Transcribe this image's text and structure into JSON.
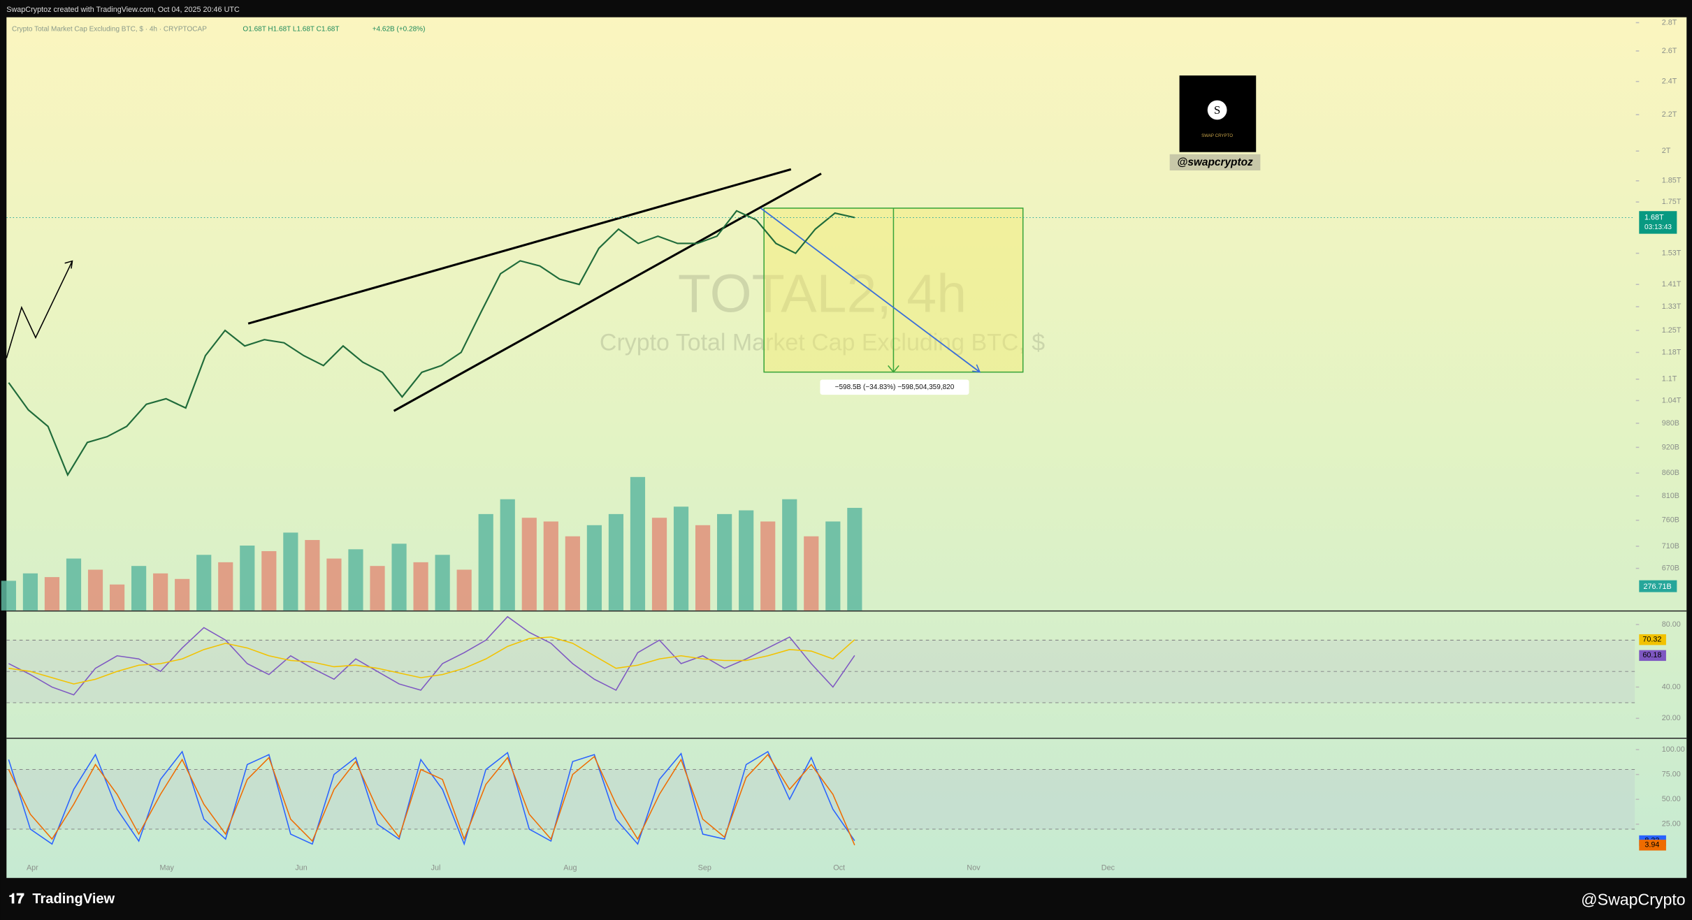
{
  "header": {
    "credit": "SwapCryptoz created with TradingView.com, Oct 04, 2025 20:46 UTC"
  },
  "legend": {
    "symbol": "Crypto Total Market Cap Excluding BTC, $ · 4h · CRYPTOCAP",
    "ohlc": "O1.68T H1.68T L1.68T C1.68T",
    "change": "+4.62B (+0.28%)"
  },
  "watermark": {
    "ticker": "TOTAL2, 4h",
    "name": "Crypto Total Market Cap Excluding BTC, $"
  },
  "measure": {
    "label": "−598.5B (−34.83%) −598,504,359,820"
  },
  "logo": {
    "letter": "S",
    "brand": "SWAP CRYPTO",
    "handle": "@swapcryptoz"
  },
  "footer": {
    "left": "TradingView",
    "right": "@SwapCrypto"
  },
  "chart_data": [
    {
      "type": "line",
      "name": "price",
      "log_scale": true,
      "color": "#1f6b3a",
      "values": [
        1090,
        1015,
        972,
        856,
        932,
        946,
        972,
        1030,
        1045,
        1020,
        1170,
        1250,
        1200,
        1220,
        1210,
        1170,
        1140,
        1200,
        1150,
        1120,
        1050,
        1120,
        1140,
        1180,
        1310,
        1450,
        1500,
        1480,
        1430,
        1410,
        1550,
        1630,
        1570,
        1600,
        1570,
        1570,
        1600,
        1710,
        1670,
        1570,
        1530,
        1630,
        1700,
        1680
      ],
      "ylim": [
        600,
        2840
      ],
      "yticks": [
        {
          "value": 2800,
          "label": "2.8T"
        },
        {
          "value": 2600,
          "label": "2.6T"
        },
        {
          "value": 2400,
          "label": "2.4T"
        },
        {
          "value": 2200,
          "label": "2.2T"
        },
        {
          "value": 2000,
          "label": "2T"
        },
        {
          "value": 1850,
          "label": "1.85T"
        },
        {
          "value": 1750,
          "label": "1.75T"
        },
        {
          "value": 1530,
          "label": "1.53T"
        },
        {
          "value": 1410,
          "label": "1.41T"
        },
        {
          "value": 1330,
          "label": "1.33T"
        },
        {
          "value": 1250,
          "label": "1.25T"
        },
        {
          "value": 1180,
          "label": "1.18T"
        },
        {
          "value": 1100,
          "label": "1.1T"
        },
        {
          "value": 1040,
          "label": "1.04T"
        },
        {
          "value": 980,
          "label": "980B"
        },
        {
          "value": 920,
          "label": "920B"
        },
        {
          "value": 860,
          "label": "860B"
        },
        {
          "value": 810,
          "label": "810B"
        },
        {
          "value": 760,
          "label": "760B"
        },
        {
          "value": 710,
          "label": "710B"
        },
        {
          "value": 670,
          "label": "670B"
        }
      ],
      "last": {
        "value": 1680,
        "label": "1.68T"
      },
      "countdown": "03:13:43",
      "volume": {
        "values": [
          80,
          100,
          90,
          140,
          110,
          70,
          120,
          100,
          85,
          150,
          130,
          175,
          160,
          210,
          190,
          140,
          165,
          120,
          180,
          130,
          150,
          110,
          260,
          300,
          250,
          240,
          200,
          230,
          260,
          360,
          250,
          280,
          230,
          260,
          270,
          240,
          300,
          200,
          240,
          276.71
        ],
        "value_labels": [
          null,
          null,
          null,
          null,
          null,
          null,
          null,
          null,
          null,
          null,
          null,
          null,
          null,
          null,
          null,
          null,
          null,
          null,
          null,
          null,
          null,
          null,
          null,
          null,
          null,
          null,
          null,
          null,
          null,
          null,
          null,
          null,
          null,
          null,
          null,
          null,
          null,
          null,
          null,
          "276.71B"
        ],
        "vlim": [
          0,
          1600
        ],
        "up_color": "#5fb8a0",
        "down_color": "#e0907a"
      },
      "months": [
        "Apr",
        "May",
        "Jun",
        "Jul",
        "Aug",
        "Sep",
        "Oct",
        "Nov",
        "Dec"
      ]
    },
    {
      "type": "line",
      "name": "rsi",
      "ylim": [
        7.6,
        88.3
      ],
      "yticks": [
        {
          "value": 80,
          "label": "80.00"
        },
        {
          "value": 40,
          "label": "40.00"
        },
        {
          "value": 20,
          "label": "20.00"
        }
      ],
      "bands": [
        70,
        50,
        30
      ],
      "series": [
        {
          "name": "RSI",
          "color": "#7e57c2",
          "values": [
            55,
            48,
            40,
            35,
            52,
            60,
            58,
            50,
            65,
            78,
            70,
            55,
            48,
            60,
            52,
            45,
            58,
            50,
            42,
            38,
            55,
            62,
            70,
            85,
            75,
            68,
            55,
            45,
            38,
            62,
            70,
            55,
            60,
            52,
            58,
            65,
            72,
            55,
            40,
            60.18
          ],
          "value_labels": [
            null,
            null,
            null,
            null,
            null,
            null,
            null,
            null,
            null,
            null,
            null,
            null,
            null,
            null,
            null,
            null,
            null,
            null,
            null,
            null,
            null,
            null,
            null,
            null,
            null,
            null,
            null,
            null,
            null,
            null,
            null,
            null,
            null,
            null,
            null,
            null,
            null,
            null,
            null,
            "60.18"
          ]
        },
        {
          "name": "RSI MA",
          "color": "#f2c200",
          "values": [
            52,
            50,
            46,
            42,
            45,
            50,
            54,
            55,
            58,
            64,
            68,
            65,
            60,
            57,
            56,
            53,
            54,
            52,
            49,
            46,
            48,
            52,
            58,
            66,
            71,
            72,
            68,
            60,
            52,
            54,
            58,
            60,
            58,
            57,
            57,
            60,
            64,
            63,
            58,
            70.32
          ],
          "value_labels": [
            null,
            null,
            null,
            null,
            null,
            null,
            null,
            null,
            null,
            null,
            null,
            null,
            null,
            null,
            null,
            null,
            null,
            null,
            null,
            null,
            null,
            null,
            null,
            null,
            null,
            null,
            null,
            null,
            null,
            null,
            null,
            null,
            null,
            null,
            null,
            null,
            null,
            null,
            null,
            "70.32"
          ]
        }
      ]
    },
    {
      "type": "line",
      "name": "stoch",
      "ylim": [
        -28,
        110.9
      ],
      "yticks": [
        {
          "value": 100,
          "label": "100.00"
        },
        {
          "value": 75,
          "label": "75.00"
        },
        {
          "value": 50,
          "label": "50.00"
        },
        {
          "value": 25,
          "label": "25.00"
        }
      ],
      "bands": [
        80,
        20
      ],
      "series": [
        {
          "name": "%K",
          "color": "#2962ff",
          "values": [
            90,
            20,
            5,
            60,
            95,
            40,
            8,
            70,
            98,
            30,
            10,
            85,
            95,
            15,
            5,
            75,
            92,
            25,
            10,
            90,
            60,
            5,
            80,
            97,
            20,
            8,
            88,
            95,
            30,
            5,
            70,
            96,
            15,
            10,
            85,
            98,
            50,
            92,
            40,
            8.33
          ]
        },
        {
          "name": "%D",
          "color": "#ef6c00",
          "values": [
            80,
            35,
            10,
            45,
            85,
            55,
            15,
            55,
            90,
            45,
            15,
            70,
            92,
            30,
            8,
            60,
            88,
            40,
            12,
            80,
            70,
            10,
            65,
            92,
            35,
            10,
            75,
            93,
            45,
            10,
            55,
            90,
            30,
            12,
            72,
            95,
            60,
            85,
            55,
            3.94
          ]
        }
      ]
    }
  ]
}
